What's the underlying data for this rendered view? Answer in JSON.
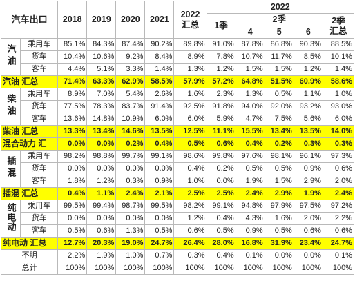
{
  "header": {
    "title": "汽车出口",
    "years": [
      "2018",
      "2019",
      "2020",
      "2021"
    ],
    "y2022_total": [
      "2022",
      "汇总"
    ],
    "y2022_group": "2022",
    "q1": "1季",
    "q2": "2季",
    "months": [
      "4",
      "5",
      "6"
    ],
    "q2_total": [
      "2季",
      "汇总"
    ]
  },
  "groups": [
    {
      "category": "汽油",
      "rows": [
        {
          "label": "乘用车",
          "values": [
            "85.1%",
            "84.3%",
            "87.4%",
            "90.2%",
            "89.8%",
            "91.0%",
            "87.8%",
            "86.8%",
            "90.3%",
            "88.5%"
          ]
        },
        {
          "label": "货车",
          "values": [
            "10.4%",
            "10.6%",
            "9.2%",
            "8.4%",
            "8.9%",
            "7.8%",
            "10.7%",
            "11.7%",
            "8.5%",
            "10.1%"
          ]
        },
        {
          "label": "客车",
          "values": [
            "4.4%",
            "5.1%",
            "3.3%",
            "1.4%",
            "1.3%",
            "1.2%",
            "1.5%",
            "1.5%",
            "1.2%",
            "1.4%"
          ]
        }
      ],
      "summary": {
        "label": "汽油 汇总",
        "values": [
          "71.4%",
          "63.3%",
          "62.9%",
          "58.5%",
          "57.9%",
          "57.2%",
          "64.8%",
          "51.5%",
          "60.9%",
          "58.6%"
        ]
      }
    },
    {
      "category": "柴油",
      "rows": [
        {
          "label": "乘用车",
          "values": [
            "8.9%",
            "7.0%",
            "5.4%",
            "2.6%",
            "1.6%",
            "2.3%",
            "1.3%",
            "0.5%",
            "1.1%",
            "1.0%"
          ]
        },
        {
          "label": "货车",
          "values": [
            "77.5%",
            "78.3%",
            "83.7%",
            "91.4%",
            "92.5%",
            "91.8%",
            "94.0%",
            "92.0%",
            "93.2%",
            "93.0%"
          ]
        },
        {
          "label": "客车",
          "values": [
            "13.6%",
            "14.8%",
            "10.9%",
            "6.0%",
            "6.0%",
            "5.9%",
            "4.7%",
            "7.5%",
            "5.6%",
            "6.0%"
          ]
        }
      ],
      "summary": {
        "label": "柴油 汇总",
        "values": [
          "13.3%",
          "13.4%",
          "14.6%",
          "13.5%",
          "12.5%",
          "11.1%",
          "15.5%",
          "13.4%",
          "13.5%",
          "14.0%"
        ]
      }
    },
    {
      "category": "",
      "rows": [],
      "summary": {
        "label": "混合动力 汇",
        "values": [
          "0.0%",
          "0.0%",
          "0.2%",
          "0.4%",
          "0.5%",
          "0.6%",
          "0.4%",
          "0.2%",
          "0.3%",
          "0.3%"
        ]
      }
    },
    {
      "category": "插混",
      "rows": [
        {
          "label": "乘用车",
          "values": [
            "98.2%",
            "98.8%",
            "99.7%",
            "99.1%",
            "98.6%",
            "99.8%",
            "97.6%",
            "98.1%",
            "96.1%",
            "97.3%"
          ]
        },
        {
          "label": "货车",
          "values": [
            "0.0%",
            "0.0%",
            "0.0%",
            "0.0%",
            "0.4%",
            "0.2%",
            "0.5%",
            "0.5%",
            "0.9%",
            "0.6%"
          ]
        },
        {
          "label": "客车",
          "values": [
            "1.8%",
            "1.2%",
            "0.3%",
            "0.9%",
            "1.0%",
            "0.0%",
            "1.9%",
            "1.5%",
            "2.9%",
            "2.0%"
          ]
        }
      ],
      "summary": {
        "label": "插混 汇总",
        "values": [
          "0.4%",
          "1.1%",
          "2.4%",
          "2.1%",
          "2.5%",
          "2.5%",
          "2.4%",
          "2.9%",
          "1.9%",
          "2.4%"
        ]
      }
    },
    {
      "category": "纯电动",
      "rows": [
        {
          "label": "乘用车",
          "values": [
            "99.5%",
            "99.4%",
            "98.7%",
            "99.5%",
            "98.2%",
            "99.1%",
            "94.8%",
            "97.9%",
            "97.5%",
            "97.2%"
          ]
        },
        {
          "label": "货车",
          "values": [
            "0.0%",
            "0.0%",
            "0.0%",
            "0.0%",
            "1.2%",
            "0.4%",
            "4.3%",
            "1.6%",
            "2.0%",
            "2.2%"
          ]
        },
        {
          "label": "客车",
          "values": [
            "0.5%",
            "0.6%",
            "1.3%",
            "0.5%",
            "0.6%",
            "0.5%",
            "0.9%",
            "0.5%",
            "0.6%",
            "0.6%"
          ]
        }
      ],
      "summary": {
        "label": "纯电动 汇总",
        "values": [
          "12.7%",
          "20.3%",
          "19.0%",
          "24.7%",
          "26.4%",
          "28.0%",
          "16.8%",
          "31.9%",
          "23.4%",
          "24.7%"
        ]
      }
    }
  ],
  "footer": [
    {
      "label": "不明",
      "values": [
        "2.2%",
        "1.9%",
        "1.0%",
        "0.7%",
        "0.3%",
        "0.4%",
        "0.1%",
        "0.0%",
        "0.0%",
        "0.1%"
      ]
    },
    {
      "label": "总计",
      "values": [
        "100%",
        "100%",
        "100%",
        "100%",
        "100%",
        "100%",
        "100%",
        "100%",
        "100%",
        "100%"
      ]
    }
  ]
}
